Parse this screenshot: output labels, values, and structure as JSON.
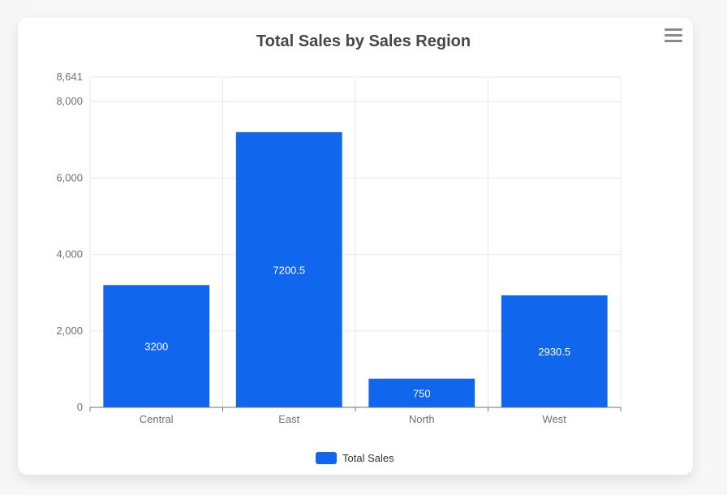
{
  "colors": {
    "bar": "#1166ee",
    "grid": "#e6e8ec",
    "axis": "#6e7079"
  },
  "menu_icon": "hamburger-menu-icon",
  "chart_data": {
    "type": "bar",
    "title": "Total Sales by Sales Region",
    "xlabel": "",
    "ylabel": "",
    "categories": [
      "Central",
      "East",
      "North",
      "West"
    ],
    "series": [
      {
        "name": "Total Sales",
        "values": [
          3200,
          7200.5,
          750,
          2930.5
        ]
      }
    ],
    "data_labels": [
      "3200",
      "7200.5",
      "750",
      "2930.5"
    ],
    "ylim": [
      0,
      8641
    ],
    "yticks": [
      0,
      2000,
      4000,
      6000,
      8000,
      8641
    ],
    "ytick_labels": [
      "0",
      "2,000",
      "4,000",
      "6,000",
      "8,000",
      "8,641"
    ],
    "grid": true,
    "legend": "bottom-center"
  }
}
